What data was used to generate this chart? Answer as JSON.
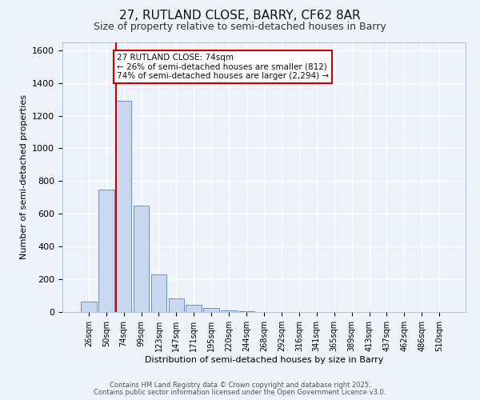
{
  "title": "27, RUTLAND CLOSE, BARRY, CF62 8AR",
  "subtitle": "Size of property relative to semi-detached houses in Barry",
  "xlabel": "Distribution of semi-detached houses by size in Barry",
  "ylabel": "Number of semi-detached properties",
  "bar_labels": [
    "26sqm",
    "50sqm",
    "74sqm",
    "99sqm",
    "123sqm",
    "147sqm",
    "171sqm",
    "195sqm",
    "220sqm",
    "244sqm",
    "268sqm",
    "292sqm",
    "316sqm",
    "341sqm",
    "365sqm",
    "389sqm",
    "413sqm",
    "437sqm",
    "462sqm",
    "486sqm",
    "510sqm"
  ],
  "bar_values": [
    65,
    750,
    1290,
    650,
    230,
    85,
    45,
    25,
    10,
    5,
    2,
    1,
    0,
    0,
    0,
    0,
    0,
    0,
    0,
    0,
    0
  ],
  "bar_color": "#c8d8f0",
  "bar_edge_color": "#7090c0",
  "vline_color": "#cc0000",
  "annotation_title": "27 RUTLAND CLOSE: 74sqm",
  "annotation_line1": "← 26% of semi-detached houses are smaller (812)",
  "annotation_line2": "74% of semi-detached houses are larger (2,294) →",
  "annotation_box_color": "#ffffff",
  "annotation_border_color": "#cc0000",
  "ylim": [
    0,
    1650
  ],
  "yticks": [
    0,
    200,
    400,
    600,
    800,
    1000,
    1200,
    1400,
    1600
  ],
  "background_color": "#eef2fa",
  "grid_color": "#ffffff",
  "footer1": "Contains HM Land Registry data © Crown copyright and database right 2025.",
  "footer2": "Contains public sector information licensed under the Open Government Licence v3.0."
}
